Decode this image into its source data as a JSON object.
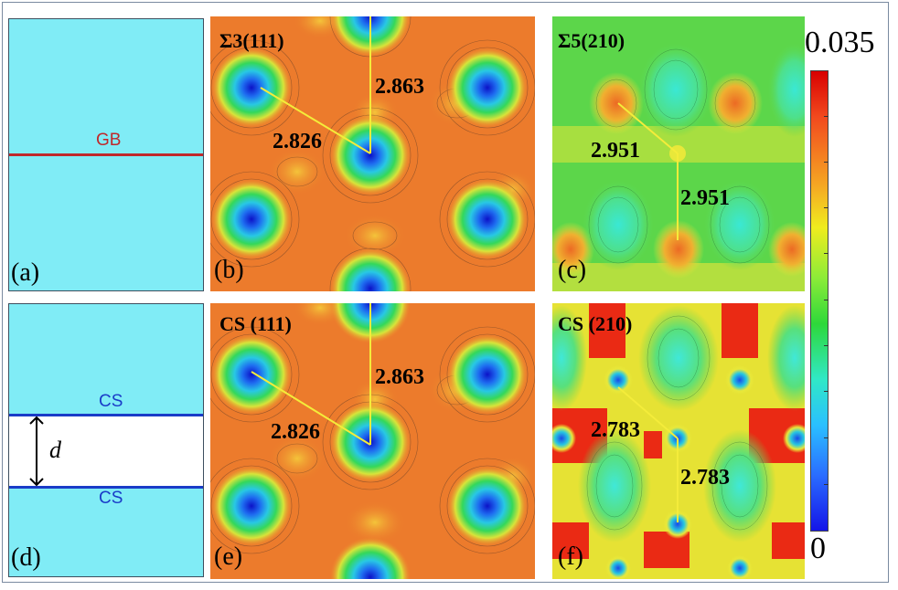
{
  "panels": {
    "a": {
      "tag": "(a)",
      "line_label": "GB"
    },
    "b": {
      "tag": "(b)",
      "title": "Σ3(111)",
      "dist1": "2.863",
      "dist2": "2.826"
    },
    "c": {
      "tag": "(c)",
      "title": "Σ5(210)",
      "dist1": "2.951",
      "dist2": "2.951"
    },
    "d": {
      "tag": "(d)",
      "top_label": "CS",
      "bottom_label": "CS",
      "spacing": "d"
    },
    "e": {
      "tag": "(e)",
      "title": "CS (111)",
      "dist1": "2.863",
      "dist2": "2.826"
    },
    "f": {
      "tag": "(f)",
      "title": "CS (210)",
      "dist1": "2.783",
      "dist2": "2.783"
    }
  },
  "colorbar": {
    "max_label": "0.035",
    "min_label": "0"
  },
  "colors": {
    "gb_line": "#c0282a",
    "cs_line": "#1a3cc8",
    "cyan_region": "#80ecf6",
    "bond_line": "#f4ec3a"
  }
}
